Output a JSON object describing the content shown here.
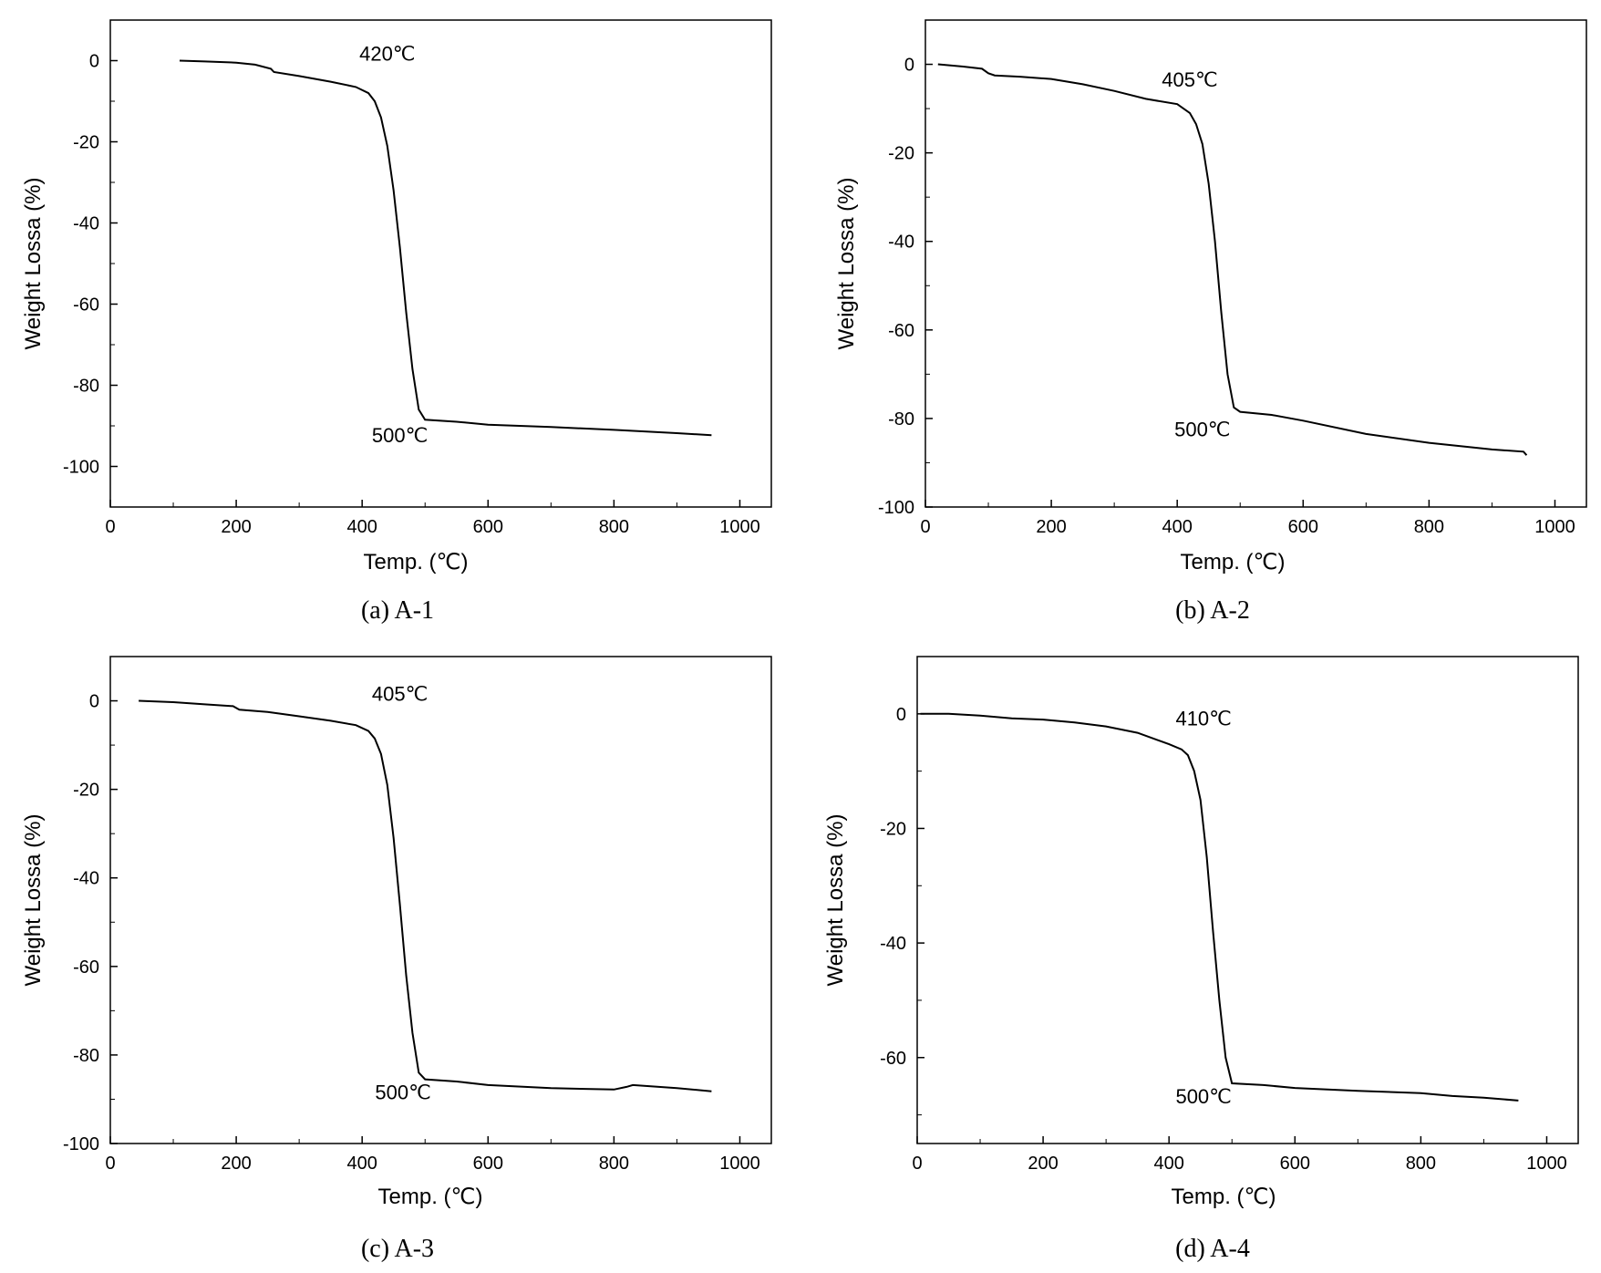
{
  "chart_data": [
    {
      "type": "line",
      "caption": "(a) A-1",
      "xlabel": "Temp. (℃)",
      "ylabel": "Weight Lossa (%)",
      "xlim": [
        0,
        1050
      ],
      "ylim": [
        -110,
        10
      ],
      "xticks": [
        0,
        200,
        400,
        600,
        800,
        1000
      ],
      "yticks": [
        0,
        -20,
        -40,
        -60,
        -80,
        -100
      ],
      "grid": false,
      "annotations": [
        {
          "text": "420℃",
          "x": 440,
          "y": 0
        },
        {
          "text": "500℃",
          "x": 460,
          "y": -94
        }
      ],
      "series": [
        {
          "x": [
            110,
            150,
            200,
            230,
            255,
            260,
            300,
            350,
            390,
            410,
            420,
            430,
            440,
            450,
            460,
            470,
            480,
            490,
            500,
            550,
            600,
            700,
            800,
            900,
            955
          ],
          "y": [
            0,
            -0.2,
            -0.5,
            -1,
            -2,
            -2.8,
            -3.8,
            -5.2,
            -6.5,
            -8,
            -10,
            -14,
            -21,
            -32,
            -46,
            -62,
            -76,
            -86,
            -88.5,
            -89,
            -89.7,
            -90.3,
            -91,
            -91.8,
            -92.3
          ]
        }
      ]
    },
    {
      "type": "line",
      "caption": "(b) A-2",
      "xlabel": "Temp. (℃)",
      "ylabel": "Weight Lossa (%)",
      "xlim": [
        0,
        1050
      ],
      "ylim": [
        -100,
        10
      ],
      "xticks": [
        0,
        200,
        400,
        600,
        800,
        1000
      ],
      "yticks": [
        0,
        -20,
        -40,
        -60,
        -80,
        -100
      ],
      "grid": false,
      "annotations": [
        {
          "text": "405℃",
          "x": 420,
          "y": -5
        },
        {
          "text": "500℃",
          "x": 440,
          "y": -84
        }
      ],
      "series": [
        {
          "x": [
            20,
            60,
            90,
            100,
            110,
            150,
            200,
            250,
            300,
            350,
            400,
            420,
            430,
            440,
            450,
            460,
            470,
            480,
            490,
            500,
            550,
            600,
            700,
            800,
            900,
            950,
            955
          ],
          "y": [
            0,
            -0.5,
            -1,
            -2,
            -2.5,
            -2.8,
            -3.3,
            -4.5,
            -6,
            -7.8,
            -9,
            -11,
            -13.5,
            -18,
            -27,
            -40,
            -56,
            -70,
            -77.5,
            -78.5,
            -79.2,
            -80.5,
            -83.5,
            -85.5,
            -87,
            -87.5,
            -88.3
          ]
        }
      ]
    },
    {
      "type": "line",
      "caption": "(c) A-3",
      "xlabel": "Temp. (℃)",
      "ylabel": "Weight Lossa (%)",
      "xlim": [
        0,
        1050
      ],
      "ylim": [
        -100,
        10
      ],
      "xticks": [
        0,
        200,
        400,
        600,
        800,
        1000
      ],
      "yticks": [
        0,
        -20,
        -40,
        -60,
        -80,
        -100
      ],
      "grid": false,
      "annotations": [
        {
          "text": "405℃",
          "x": 460,
          "y": 0
        },
        {
          "text": "500℃",
          "x": 465,
          "y": -90
        }
      ],
      "series": [
        {
          "x": [
            45,
            100,
            150,
            195,
            205,
            250,
            300,
            350,
            390,
            410,
            420,
            430,
            440,
            450,
            460,
            470,
            480,
            490,
            500,
            550,
            600,
            700,
            800,
            820,
            830,
            900,
            955
          ],
          "y": [
            0,
            -0.3,
            -0.8,
            -1.2,
            -2,
            -2.5,
            -3.5,
            -4.5,
            -5.5,
            -6.8,
            -8.5,
            -12,
            -19,
            -31,
            -46,
            -62,
            -75,
            -84,
            -85.5,
            -86,
            -86.8,
            -87.5,
            -87.8,
            -87.2,
            -86.8,
            -87.5,
            -88.2
          ]
        }
      ]
    },
    {
      "type": "line",
      "caption": "(d) A-4",
      "xlabel": "Temp. (℃)",
      "ylabel": "Weight Lossa (%)",
      "xlim": [
        0,
        1050
      ],
      "ylim": [
        -75,
        10
      ],
      "xticks": [
        0,
        200,
        400,
        600,
        800,
        1000
      ],
      "yticks": [
        0,
        -20,
        -40,
        -60
      ],
      "grid": false,
      "annotations": [
        {
          "text": "410℃",
          "x": 455,
          "y": -2
        },
        {
          "text": "500℃",
          "x": 455,
          "y": -68
        }
      ],
      "series": [
        {
          "x": [
            5,
            50,
            100,
            150,
            200,
            250,
            300,
            350,
            400,
            420,
            430,
            440,
            450,
            460,
            470,
            480,
            490,
            500,
            550,
            600,
            700,
            800,
            850,
            900,
            955
          ],
          "y": [
            0,
            0,
            -0.3,
            -0.8,
            -1,
            -1.5,
            -2.2,
            -3.3,
            -5.3,
            -6.2,
            -7.2,
            -10,
            -15,
            -25,
            -38,
            -50,
            -60,
            -64.5,
            -64.8,
            -65.3,
            -65.8,
            -66.2,
            -66.7,
            -67,
            -67.5
          ]
        }
      ]
    }
  ]
}
